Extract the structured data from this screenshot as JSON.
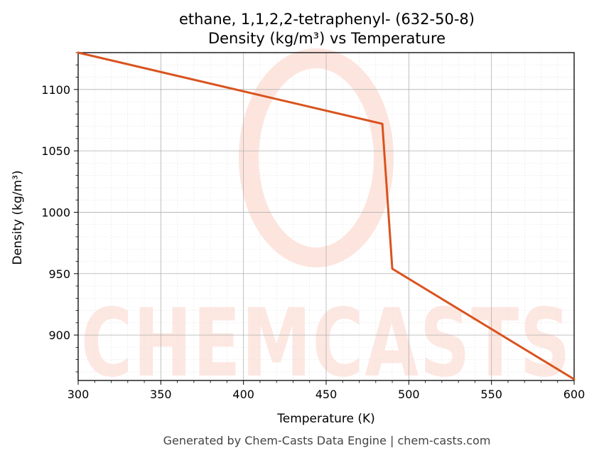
{
  "chart_data": {
    "type": "line",
    "title": "ethane, 1,1,2,2-tetraphenyl- (632-50-8)",
    "subtitle": "Density (kg/m³) vs Temperature",
    "xlabel": "Temperature (K)",
    "ylabel": "Density (kg/m³)",
    "xlim": [
      300,
      600
    ],
    "ylim": [
      863,
      1130
    ],
    "xticks": [
      300,
      350,
      400,
      450,
      500,
      550,
      600
    ],
    "yticks": [
      900,
      950,
      1000,
      1050,
      1100
    ],
    "grid": true,
    "line_color": "#d9531e",
    "series": [
      {
        "x": [
          300,
          484,
          490,
          600
        ],
        "y": [
          1130,
          1072,
          954,
          864
        ]
      }
    ]
  },
  "watermark": "CHEMCASTS",
  "footer": "Generated by Chem-Casts Data Engine | chem-casts.com"
}
